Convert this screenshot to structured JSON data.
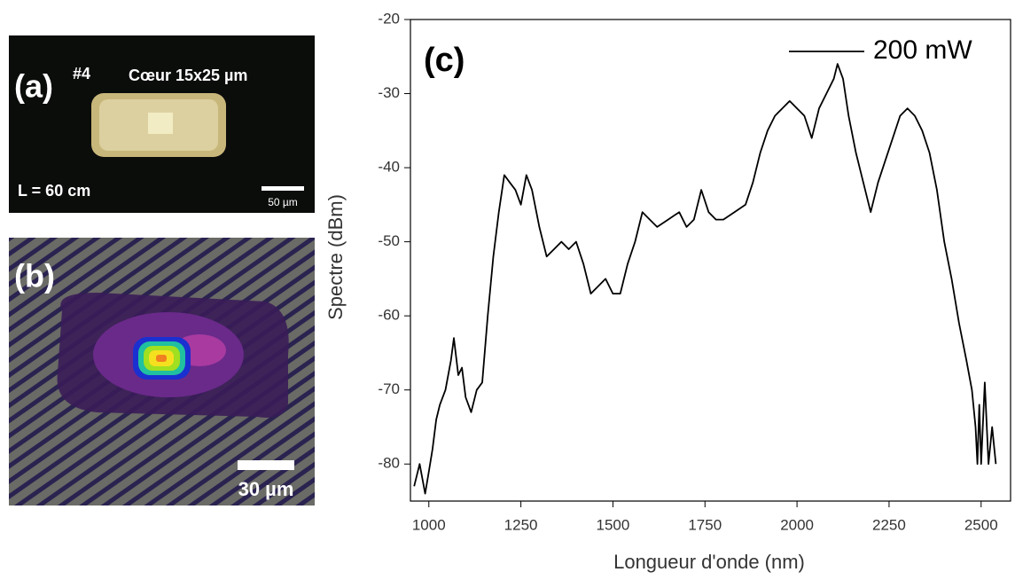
{
  "panels": {
    "a": {
      "label": "(a)",
      "sample": "#4",
      "core": "Cœur 15x25 µm",
      "length": "L = 60 cm",
      "scale": "50 µm"
    },
    "b": {
      "label": "(b)",
      "scale": "30 µm"
    }
  },
  "chart_data": {
    "type": "line",
    "panel_label": "(c)",
    "x_label": "Longueur d'onde (nm)",
    "y_label": "Spectre (dBm)",
    "x": [
      960,
      975,
      990,
      1000,
      1010,
      1020,
      1030,
      1045,
      1060,
      1068,
      1080,
      1090,
      1100,
      1115,
      1130,
      1145,
      1160,
      1175,
      1190,
      1205,
      1220,
      1235,
      1250,
      1265,
      1280,
      1300,
      1320,
      1340,
      1360,
      1380,
      1400,
      1420,
      1440,
      1460,
      1480,
      1500,
      1520,
      1540,
      1560,
      1580,
      1600,
      1620,
      1650,
      1680,
      1700,
      1720,
      1740,
      1760,
      1780,
      1800,
      1830,
      1860,
      1880,
      1900,
      1920,
      1940,
      1960,
      1980,
      2000,
      2020,
      2040,
      2060,
      2080,
      2100,
      2110,
      2125,
      2140,
      2160,
      2180,
      2200,
      2220,
      2240,
      2260,
      2280,
      2300,
      2320,
      2340,
      2360,
      2380,
      2400,
      2420,
      2440,
      2460,
      2475,
      2485,
      2490,
      2495,
      2500,
      2510,
      2520,
      2530,
      2540
    ],
    "series": [
      {
        "name": "200 mW",
        "color": "#000000",
        "values": [
          -83,
          -80,
          -84,
          -81,
          -78,
          -74,
          -72,
          -70,
          -66,
          -63,
          -68,
          -67,
          -71,
          -73,
          -70,
          -69,
          -60,
          -52,
          -46,
          -41,
          -42,
          -43,
          -45,
          -41,
          -43,
          -48,
          -52,
          -51,
          -50,
          -51,
          -50,
          -53,
          -57,
          -56,
          -55,
          -57,
          -57,
          -53,
          -50,
          -46,
          -47,
          -48,
          -47,
          -46,
          -48,
          -47,
          -43,
          -46,
          -47,
          -47,
          -46,
          -45,
          -42,
          -38,
          -35,
          -33,
          -32,
          -31,
          -32,
          -33,
          -36,
          -32,
          -30,
          -28,
          -26,
          -28,
          -33,
          -38,
          -42,
          -46,
          -42,
          -39,
          -36,
          -33,
          -32,
          -33,
          -35,
          -38,
          -43,
          -50,
          -55,
          -61,
          -66,
          -70,
          -75,
          -80,
          -72,
          -80,
          -69,
          -80,
          -75,
          -80
        ]
      }
    ],
    "xlim": [
      950,
      2580
    ],
    "ylim": [
      -85,
      -20
    ],
    "xticks": [
      1000,
      1250,
      1500,
      1750,
      2000,
      2250,
      2500
    ],
    "yticks": [
      -20,
      -30,
      -40,
      -50,
      -60,
      -70,
      -80
    ]
  }
}
